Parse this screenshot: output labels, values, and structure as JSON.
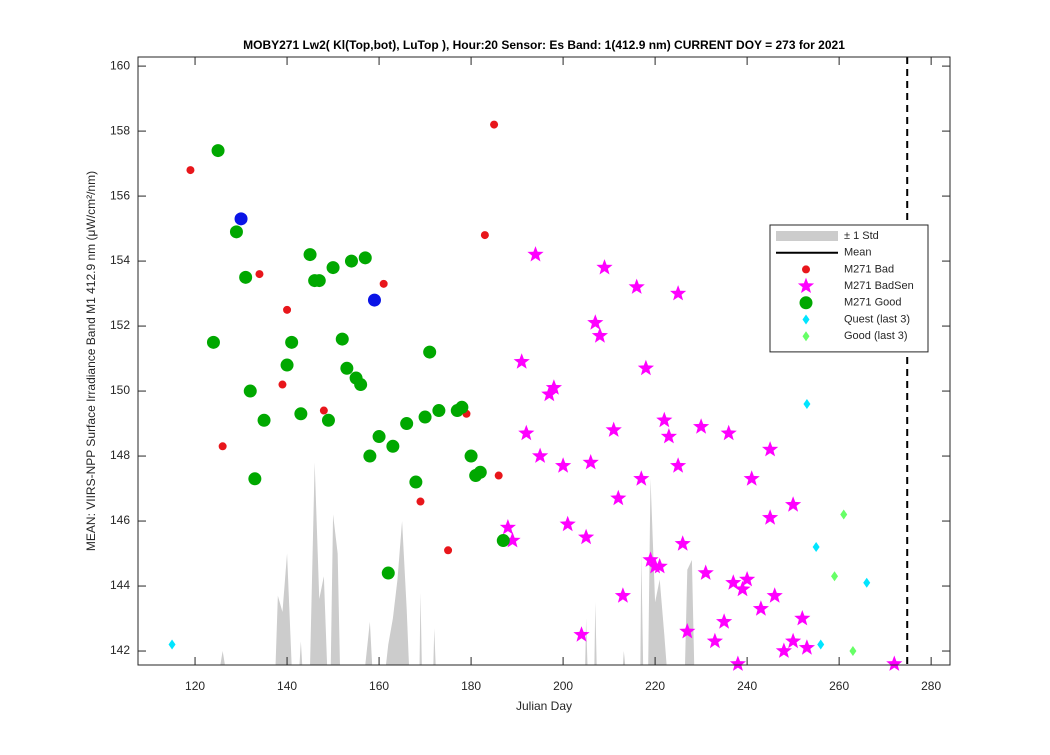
{
  "chart_data": {
    "type": "scatter",
    "title": "MOBY271   Lw2( Kl(Top,bot), LuTop ),   Hour:20 Sensor: Es Band: 1(412.9 nm)   CURRENT DOY = 273 for 2021",
    "xlabel": "Julian Day",
    "ylabel": "MEAN: VIIRS-NPP Surface Irradiance Band M1 412.9 nm (μW/cm²/nm)",
    "xlim": [
      107.6,
      284.1
    ],
    "ylim": [
      141.57,
      160.28
    ],
    "xticks": [
      120,
      140,
      160,
      180,
      200,
      220,
      240,
      260,
      280
    ],
    "yticks": [
      142,
      144,
      146,
      148,
      150,
      152,
      154,
      156,
      158,
      160
    ],
    "vline_x": 274.8,
    "series": [
      {
        "name": "± 1 Std",
        "marker": "area",
        "color": "#cccccc",
        "x": [
          125.5,
          126,
          126.5,
          137.5,
          138,
          139,
          140,
          141,
          142.7,
          143,
          143.3,
          145,
          146,
          147,
          148,
          148.7,
          149.5,
          150,
          151,
          151.5,
          157,
          158,
          158.5,
          161.5,
          162,
          163,
          164,
          165,
          166,
          166.5,
          168.8,
          169,
          169.3,
          171.8,
          172,
          172.3,
          204.8,
          205,
          205.3,
          206.8,
          207,
          207.3,
          213,
          213.2,
          213.5,
          216.8,
          217,
          217.4,
          218.5,
          219,
          220,
          221,
          222,
          222.5,
          226.5,
          227,
          228,
          228.5
        ],
        "values": [
          141.57,
          142.0,
          141.57,
          141.57,
          143.7,
          143.2,
          145.0,
          141.57,
          141.57,
          142.3,
          141.57,
          141.57,
          147.8,
          143.6,
          144.3,
          141.57,
          141.57,
          146.2,
          145.0,
          141.57,
          141.57,
          142.9,
          141.57,
          141.57,
          142.2,
          143.0,
          144.2,
          146.0,
          143.3,
          141.57,
          141.57,
          143.8,
          141.57,
          141.57,
          142.7,
          141.57,
          141.57,
          143.0,
          141.57,
          141.57,
          143.5,
          141.57,
          141.57,
          142.0,
          141.57,
          141.57,
          145.0,
          141.57,
          141.57,
          147.3,
          143.5,
          144.2,
          142.5,
          141.57,
          141.57,
          144.5,
          144.8,
          141.57
        ]
      },
      {
        "name": "Mean",
        "marker": "line",
        "color": "#000000",
        "x": [],
        "values": []
      },
      {
        "name": "M271 Bad",
        "marker": "dot",
        "color": "#e8161b",
        "x": [
          119,
          126,
          134,
          139,
          140,
          148,
          161,
          169,
          175,
          179,
          183,
          185,
          186
        ],
        "values": [
          156.8,
          148.3,
          153.6,
          150.2,
          152.5,
          149.4,
          153.3,
          146.6,
          145.1,
          149.3,
          154.8,
          158.2,
          147.4
        ]
      },
      {
        "name": "M271 BadSen",
        "marker": "star",
        "color": "#ff00ff",
        "x": [
          194,
          209,
          216,
          225,
          207,
          208,
          218,
          191,
          198,
          197,
          222,
          223,
          230,
          236,
          245,
          211,
          192,
          195,
          200,
          206,
          217,
          225,
          241,
          212,
          250,
          245,
          188,
          189,
          201,
          205,
          226,
          219,
          220,
          221,
          231,
          237,
          240,
          239,
          213,
          243,
          246,
          235,
          252,
          204,
          227,
          233,
          250,
          253,
          248,
          238,
          272
        ],
        "values": [
          154.2,
          153.8,
          153.2,
          153.0,
          152.1,
          151.7,
          150.7,
          150.9,
          150.1,
          149.9,
          149.1,
          148.6,
          148.9,
          148.7,
          148.2,
          148.8,
          148.7,
          148.0,
          147.7,
          147.8,
          147.3,
          147.7,
          147.3,
          146.7,
          146.5,
          146.1,
          145.8,
          145.4,
          145.9,
          145.5,
          145.3,
          144.8,
          144.6,
          144.6,
          144.4,
          144.1,
          144.2,
          143.9,
          143.7,
          143.3,
          143.7,
          142.9,
          143.0,
          142.5,
          142.6,
          142.3,
          142.3,
          142.1,
          142.0,
          141.6,
          141.6
        ]
      },
      {
        "name": "M271 Good",
        "marker": "bigdot",
        "color": "#00a800",
        "x": [
          125,
          129,
          131,
          145,
          146,
          147,
          150,
          154,
          157,
          124,
          141,
          140,
          152,
          153,
          171,
          155,
          156,
          132,
          143,
          135,
          149,
          166,
          170,
          173,
          177,
          178,
          160,
          163,
          180,
          158,
          182,
          181,
          168,
          133,
          187,
          162
        ],
        "values": [
          157.4,
          154.9,
          153.5,
          154.2,
          153.4,
          153.4,
          153.8,
          154.0,
          154.1,
          151.5,
          151.5,
          150.8,
          151.6,
          150.7,
          151.2,
          150.4,
          150.2,
          150.0,
          149.3,
          149.1,
          149.1,
          149.0,
          149.2,
          149.4,
          149.4,
          149.5,
          148.6,
          148.3,
          148.0,
          148.0,
          147.5,
          147.4,
          147.2,
          147.3,
          145.4,
          144.4
        ]
      },
      {
        "name": "Quest (last 3)",
        "marker": "diamond",
        "color": "#00e5ff",
        "x": [
          115,
          253,
          255,
          266,
          256
        ],
        "values": [
          142.2,
          149.6,
          145.2,
          144.1,
          142.2
        ]
      },
      {
        "name": "Good (last 3)",
        "marker": "diamond",
        "color": "#66ff66",
        "x": [
          261,
          259,
          263
        ],
        "values": [
          146.2,
          144.3,
          142.0
        ]
      },
      {
        "marker": "bigdot",
        "color": "#0a14e6",
        "x": [
          130,
          159
        ],
        "values": [
          155.3,
          152.8
        ]
      }
    ]
  }
}
